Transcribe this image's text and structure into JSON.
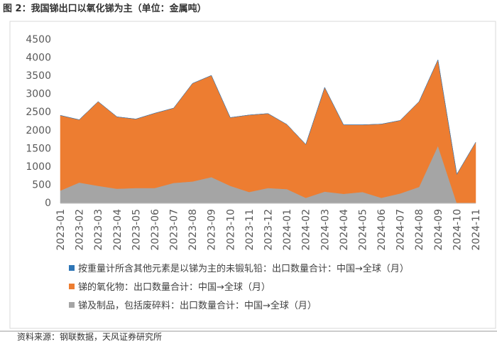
{
  "chart_data": {
    "type": "stacked-area",
    "title": "图 2：我国锑出口以氧化锑为主（单位：金属吨）",
    "source": "资料来源：钢联数据，天风证券研究所",
    "categories": [
      "2023-01",
      "2023-02",
      "2023-03",
      "2023-04",
      "2023-05",
      "2023-06",
      "2023-07",
      "2023-08",
      "2023-09",
      "2023-10",
      "2023-11",
      "2023-12",
      "2024-01",
      "2024-02",
      "2024-03",
      "2024-04",
      "2024-05",
      "2024-06",
      "2024-07",
      "2024-08",
      "2024-09",
      "2024-10",
      "2024-11"
    ],
    "series": [
      {
        "name": "按重量计所含其他元素是以锑为主的未锻轧铅：出口数量合计：中国→全球（月）",
        "color": "#2e75b6",
        "values": [
          0,
          0,
          0,
          0,
          0,
          0,
          0,
          0,
          0,
          0,
          0,
          0,
          0,
          0,
          0,
          0,
          0,
          0,
          0,
          0,
          0,
          0,
          0
        ]
      },
      {
        "name": "锑的氧化物：出口数量合计：中国→全球（月）",
        "color": "#ed7d31",
        "values": [
          2070,
          1730,
          2320,
          1980,
          1900,
          2060,
          2060,
          2700,
          2800,
          1880,
          2120,
          2050,
          1780,
          1470,
          2870,
          1900,
          1850,
          2030,
          2010,
          2350,
          2370,
          800,
          1680
        ]
      },
      {
        "name": "锑及制品，包括废碎料：出口数量合计：中国→全球（月）",
        "color": "#a5a5a5",
        "values": [
          350,
          570,
          480,
          400,
          420,
          420,
          560,
          600,
          720,
          480,
          310,
          420,
          390,
          150,
          320,
          260,
          310,
          150,
          270,
          450,
          1580,
          0,
          0
        ]
      }
    ],
    "ylim": [
      0,
      4500
    ],
    "yticks": [
      0,
      500,
      1000,
      1500,
      2000,
      2500,
      3000,
      3500,
      4000,
      4500
    ],
    "grid": false
  }
}
